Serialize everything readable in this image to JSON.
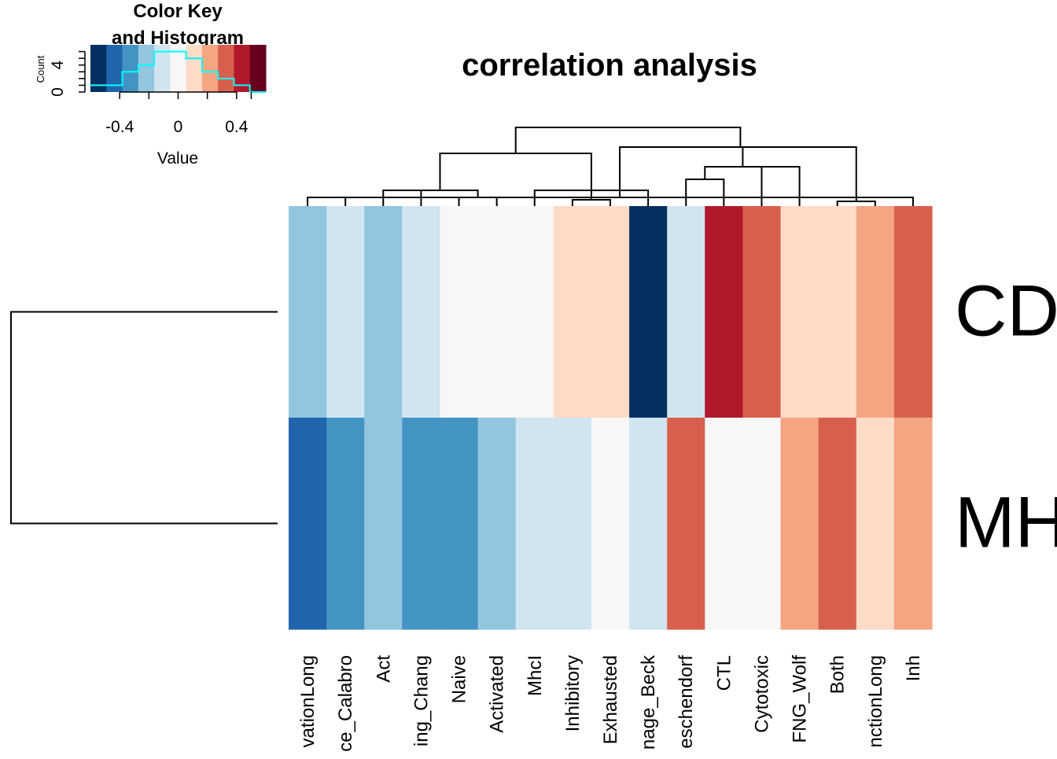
{
  "chart_data": {
    "type": "heatmap",
    "title": "correlation analysis",
    "color_key": {
      "title_line1": "Color Key",
      "title_line2": "and Histogram",
      "xlabel": "Value",
      "ylabel": "Count",
      "x_ticks": [
        "-0.4",
        "0",
        "0.4"
      ],
      "x_tick_values": [
        -0.4,
        0,
        0.4
      ],
      "y_ticks": [
        "0",
        "4"
      ],
      "y_tick_values": [
        0,
        4
      ],
      "range": [
        -0.6,
        0.6
      ],
      "ylim": [
        0,
        7
      ],
      "colors": [
        "#053061",
        "#2166ac",
        "#4393c3",
        "#92c5de",
        "#d1e5f0",
        "#f7f7f7",
        "#fddbc7",
        "#f4a582",
        "#d6604d",
        "#b2182b",
        "#67001f"
      ],
      "histogram_counts": [
        1,
        1,
        3,
        4,
        6,
        6,
        5,
        3,
        2,
        1,
        0
      ],
      "histogram_color": "#00ffff"
    },
    "columns": [
      "ActivationLong",
      "Senescence_Calabro",
      "Act",
      "Signaling_Chang",
      "Naive",
      "Activated",
      "MhcI",
      "Inhibitory",
      "Exhausted",
      "Damage_Beck",
      "Eschendorf",
      "CTL",
      "Cytotoxic",
      "IFNG_Wolf",
      "Both",
      "FunctionLong",
      "Inh"
    ],
    "column_labels_visible": [
      "vationLong",
      "ce_Calabro",
      "Act",
      "ing_Chang",
      "Naive",
      "Activated",
      "MhcI",
      "Inhibitory",
      "Exhausted",
      "nage_Beck",
      "eschendorf",
      "CTL",
      "Cytotoxic",
      "FNG_Wolf",
      "Both",
      "nctionLong",
      "Inh"
    ],
    "rows": [
      "CD",
      "MH"
    ],
    "cell_colors": [
      [
        "#92c5de",
        "#d1e5f0",
        "#92c5de",
        "#d1e5f0",
        "#f7f7f7",
        "#f7f7f7",
        "#f7f7f7",
        "#fddbc7",
        "#fddbc7",
        "#053061",
        "#d1e5f0",
        "#b2182b",
        "#d6604d",
        "#fddbc7",
        "#fddbc7",
        "#f4a582",
        "#d6604d"
      ],
      [
        "#2166ac",
        "#4393c3",
        "#92c5de",
        "#4393c3",
        "#4393c3",
        "#92c5de",
        "#d1e5f0",
        "#d1e5f0",
        "#f7f7f7",
        "#d1e5f0",
        "#d6604d",
        "#f7f7f7",
        "#f7f7f7",
        "#f4a582",
        "#d6604d",
        "#fddbc7",
        "#f4a582"
      ]
    ],
    "values": [
      [
        -0.25,
        -0.1,
        -0.25,
        -0.1,
        0.0,
        0.0,
        0.0,
        0.1,
        0.1,
        -0.55,
        -0.1,
        0.45,
        0.35,
        0.1,
        0.1,
        0.25,
        0.35
      ],
      [
        -0.45,
        -0.35,
        -0.25,
        -0.35,
        -0.35,
        -0.25,
        -0.1,
        -0.1,
        0.0,
        -0.1,
        0.35,
        0.0,
        0.0,
        0.25,
        0.35,
        0.1,
        0.25
      ]
    ],
    "grid": false,
    "legend": "top-left"
  }
}
